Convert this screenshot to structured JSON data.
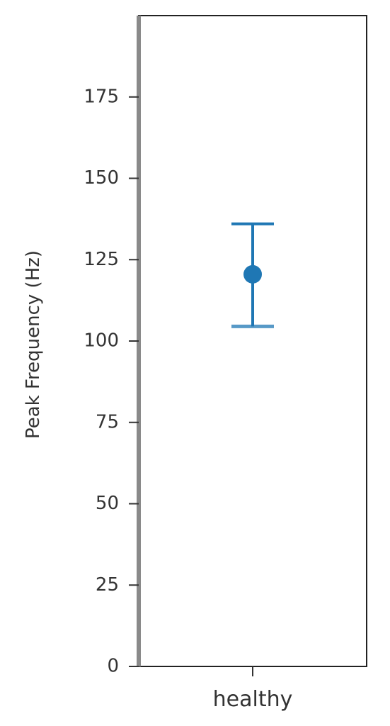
{
  "chart_data": {
    "type": "point",
    "title": "",
    "xlabel": "",
    "ylabel": "Peak Frequency (Hz)",
    "categories": [
      "healthy"
    ],
    "series": [
      {
        "values": [
          120.5
        ],
        "error_low": [
          104.5
        ],
        "error_high": [
          136.0
        ],
        "color": "#1f77b4"
      }
    ],
    "ylim": [
      0,
      200
    ],
    "yticks": [
      0,
      25,
      50,
      75,
      100,
      125,
      150,
      175
    ],
    "grid": false,
    "legend": "none"
  }
}
